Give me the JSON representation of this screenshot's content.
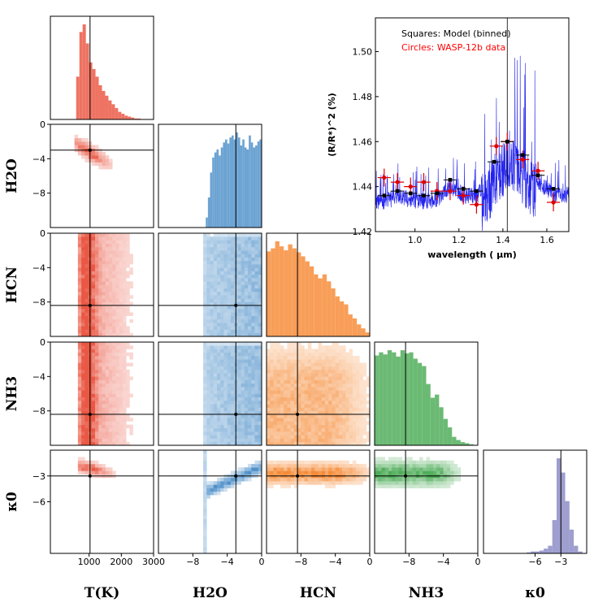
{
  "chart_data": {
    "type": "corner",
    "parameters": [
      {
        "name": "T(K)",
        "label": "T(K)",
        "truth": 1030,
        "range": [
          -200,
          3000
        ],
        "ticks": [
          1000,
          2000,
          3000
        ],
        "tick_labels": [
          "1000",
          "2000",
          "3000"
        ],
        "color": "#e8442e"
      },
      {
        "name": "H2O",
        "label": "H2O",
        "truth": -3.0,
        "range": [
          -12,
          0
        ],
        "ticks": [
          -8,
          -4,
          0
        ],
        "tick_labels": [
          "−8",
          "−4",
          "0"
        ],
        "color": "#3b84c3"
      },
      {
        "name": "HCN",
        "label": "HCN",
        "truth": -8.4,
        "range": [
          -12,
          0
        ],
        "ticks": [
          -8,
          -4,
          0
        ],
        "tick_labels": [
          "−8",
          "−4",
          "0"
        ],
        "color": "#f57e20"
      },
      {
        "name": "NH3",
        "label": "NH3",
        "truth": -8.4,
        "range": [
          -12,
          0
        ],
        "ticks": [
          -8,
          -4,
          0
        ],
        "tick_labels": [
          "−8",
          "−4",
          "0"
        ],
        "color": "#3aa346"
      },
      {
        "name": "kappa0",
        "label": "κ0",
        "truth": -3.0,
        "range": [
          -12,
          0
        ],
        "ticks": [
          -6,
          -3
        ],
        "tick_labels": [
          "−6",
          "−3"
        ],
        "color": "#7d7dbf"
      }
    ],
    "y_ticks": {
      "H2O": {
        "ticks": [
          0,
          -4,
          -8
        ],
        "labels": [
          "0",
          "−4",
          "−8"
        ]
      },
      "HCN": {
        "ticks": [
          0,
          -4,
          -8
        ],
        "labels": [
          "0",
          "−4",
          "−8"
        ]
      },
      "NH3": {
        "ticks": [
          0,
          -4,
          -8
        ],
        "labels": [
          "0",
          "−4",
          "−8"
        ]
      },
      "kappa0": {
        "ticks": [
          -3,
          -6
        ],
        "labels": [
          "−3",
          "−6"
        ]
      }
    },
    "marginal_hist": {
      "T(K)": {
        "start": -200,
        "bin": 100,
        "counts": [
          0,
          0,
          0,
          0,
          0,
          0,
          0,
          0,
          45,
          92,
          100,
          80,
          60,
          53,
          45,
          36,
          30,
          25,
          20,
          16,
          12,
          8,
          6,
          4,
          3,
          2,
          1,
          1,
          0,
          0,
          0,
          0
        ]
      },
      "H2O": {
        "start": -12,
        "bin": 0.25,
        "counts": [
          0,
          0,
          0,
          0,
          0,
          0,
          0,
          0,
          0,
          0,
          0,
          0,
          0,
          0,
          0,
          0,
          0,
          0,
          0,
          0,
          0,
          0,
          10,
          30,
          55,
          70,
          75,
          78,
          72,
          80,
          85,
          88,
          84,
          90,
          92,
          88,
          95,
          90,
          82,
          88,
          80,
          78,
          92,
          85,
          80,
          82,
          86,
          88
        ]
      },
      "HCN": {
        "start": -12,
        "bin": 0.5,
        "counts": [
          85,
          88,
          95,
          90,
          86,
          92,
          88,
          84,
          80,
          75,
          70,
          62,
          58,
          62,
          55,
          48,
          40,
          35,
          32,
          22,
          18,
          12,
          8,
          4
        ]
      },
      "NH3": {
        "start": -12,
        "bin": 0.5,
        "counts": [
          85,
          88,
          86,
          90,
          88,
          84,
          90,
          87,
          88,
          82,
          78,
          75,
          58,
          45,
          48,
          36,
          25,
          17,
          8,
          5,
          3,
          2,
          1,
          0
        ]
      },
      "kappa0": {
        "start": -12,
        "bin": 0.5,
        "counts": [
          0,
          0,
          0,
          0,
          0,
          0,
          0,
          0,
          0,
          0,
          1,
          2,
          2,
          3,
          5,
          8,
          35,
          100,
          85,
          55,
          25,
          8,
          2,
          0
        ]
      }
    },
    "inset": {
      "type": "spectrum",
      "title_lines": [
        "Squares: Model (binned)",
        "Circles: WASP-12b data"
      ],
      "title_colors": [
        "#000000",
        "#ff0000"
      ],
      "xlabel": "wavelength ( μm)",
      "ylabel": "(R/R*)^2 (%)",
      "xlim": [
        0.82,
        1.7
      ],
      "ylim": [
        1.42,
        1.515
      ],
      "xticks": [
        1.0,
        1.2,
        1.4,
        1.6
      ],
      "xtick_labels": [
        "1.0",
        "1.2",
        "1.4",
        "1.6"
      ],
      "yticks": [
        1.42,
        1.44,
        1.46,
        1.48,
        1.5
      ],
      "ytick_labels": [
        "1.42",
        "1.44",
        "1.46",
        "1.48",
        "1.50"
      ],
      "model_binned": {
        "x": [
          0.86,
          0.92,
          0.98,
          1.04,
          1.1,
          1.16,
          1.22,
          1.28,
          1.36,
          1.42,
          1.49,
          1.56,
          1.63
        ],
        "y": [
          1.436,
          1.438,
          1.437,
          1.436,
          1.437,
          1.443,
          1.439,
          1.438,
          1.451,
          1.46,
          1.454,
          1.445,
          1.439
        ]
      },
      "data": {
        "x": [
          0.86,
          0.92,
          0.98,
          1.04,
          1.1,
          1.16,
          1.22,
          1.28,
          1.37,
          1.42,
          1.49,
          1.56,
          1.63
        ],
        "y": [
          1.444,
          1.442,
          1.44,
          1.442,
          1.438,
          1.438,
          1.436,
          1.432,
          1.458,
          1.46,
          1.452,
          1.447,
          1.433
        ],
        "yerr": [
          0.004,
          0.004,
          0.004,
          0.004,
          0.004,
          0.004,
          0.004,
          0.004,
          0.004,
          0.004,
          0.004,
          0.004,
          0.004
        ]
      }
    }
  }
}
